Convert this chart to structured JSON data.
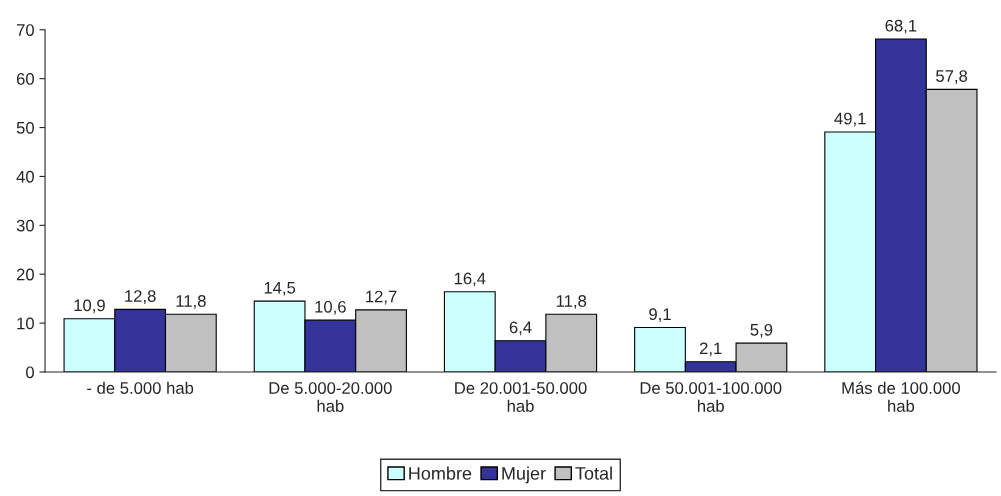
{
  "chart_data": {
    "type": "bar",
    "categories": [
      "- de 5.000 hab",
      "De 5.000-20.000 hab",
      "De 20.001-50.000 hab",
      "De 50.001-100.000 hab",
      "Más de 100.000 hab"
    ],
    "series": [
      {
        "name": "Hombre",
        "color": "#ccffff",
        "values": [
          10.9,
          14.5,
          16.4,
          9.1,
          49.1
        ],
        "value_labels": [
          "10,9",
          "14,5",
          "16,4",
          "9,1",
          "49,1"
        ]
      },
      {
        "name": "Mujer",
        "color": "#333399",
        "values": [
          12.8,
          10.6,
          6.4,
          2.1,
          68.1
        ],
        "value_labels": [
          "12,8",
          "10,6",
          "6,4",
          "2,1",
          "68,1"
        ]
      },
      {
        "name": "Total",
        "color": "#c0c0c0",
        "values": [
          11.8,
          12.7,
          11.8,
          5.9,
          57.8
        ],
        "value_labels": [
          "11,8",
          "12,7",
          "11,8",
          "5,9",
          "57,8"
        ]
      }
    ],
    "ylim": [
      0,
      70
    ],
    "yticks": [
      0,
      10,
      20,
      30,
      40,
      50,
      60,
      70
    ],
    "grid": false,
    "legend": "bottom"
  }
}
